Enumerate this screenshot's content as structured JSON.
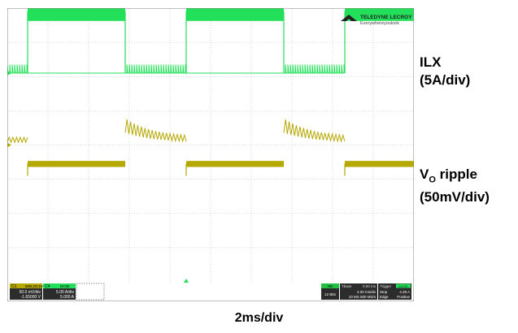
{
  "brand": {
    "name": "TELEDYNE LECROY",
    "tagline": "Everywhereyoulook"
  },
  "labels": {
    "ilx": [
      "ILX",
      "(5A/div)"
    ],
    "vo_prefix": "V",
    "vo_sub": "O",
    "vo_suffix": " ripple",
    "vo_scale": "(50mV/div)",
    "timebase": "2ms/div"
  },
  "colors": {
    "screen_bg": "#ffffff",
    "grid": "#b8b8b8",
    "frame": "#7f7f7f",
    "ch1": "#b5a800",
    "c4": "#22e05a",
    "status_bg": "#3a3a3a"
  },
  "status_bar": {
    "c1": {
      "name": "C1",
      "tags": [
        "BWL",
        "DC1M"
      ],
      "scale": "50.0 mV/div",
      "offset": "-1.65000 V"
    },
    "c4": {
      "name": "C4",
      "tags": [
        "DC50"
      ],
      "scale": "5.00 A/div",
      "offset": "5.000 A"
    },
    "hd": "HD",
    "bits": "12 Bits",
    "timebase": {
      "label": "Tbase",
      "delay": "0.00 ms",
      "scale": "2.00 ms/div",
      "rate": "10 MS  500 MS/s"
    },
    "trigger": {
      "label": "Trigger",
      "source": "C4 DC",
      "mode": "Stop",
      "type": "Edge",
      "level": "4.28 A",
      "slope": "Positive"
    }
  },
  "chart_data": {
    "type": "line",
    "title": "",
    "xlabel": "2ms/div",
    "xlim_ms": [
      0,
      20
    ],
    "grid": {
      "x_divisions": 10,
      "y_divisions": 8,
      "grid_on": true
    },
    "period_ms": 7.8,
    "high_interval_ms": [
      [
        1.0,
        5.8
      ],
      [
        8.8,
        13.6
      ],
      [
        16.6,
        20.0
      ]
    ],
    "series": [
      {
        "name": "ILX",
        "color": "#22e05a",
        "scale": "5A/div",
        "low_level_div": 2.1,
        "high_level_div": 3.9,
        "low_ripple_div": 0.25,
        "high_band_div": 0.55
      },
      {
        "name": "VO ripple",
        "color": "#b5a800",
        "scale": "50mV/div",
        "low_region_level_div": 0.15,
        "high_region_level_div": -0.55,
        "noise_band_div": 0.25,
        "step_overshoot_div": 0.7
      }
    ]
  }
}
